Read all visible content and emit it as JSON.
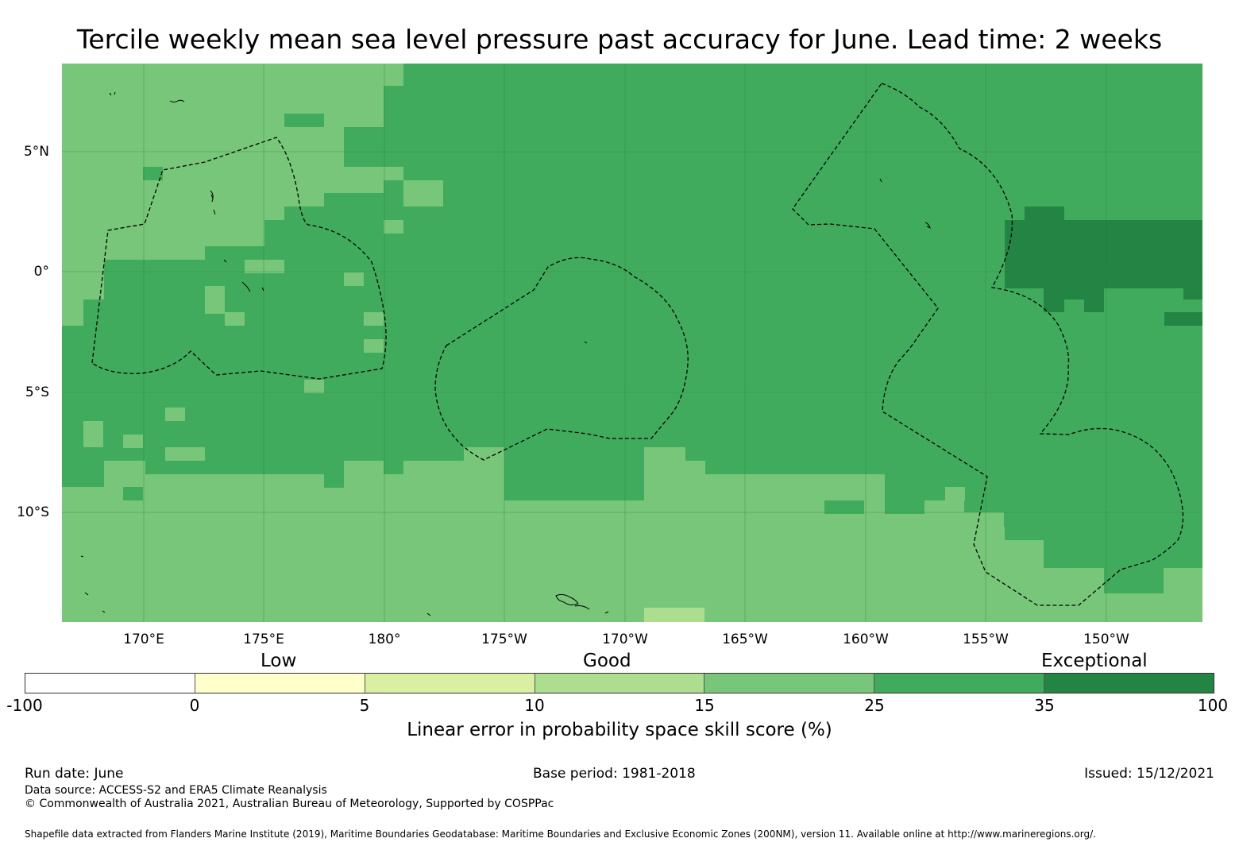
{
  "title": "Tercile weekly mean sea level pressure past accuracy for June. Lead time: 2 weeks",
  "map": {
    "lat_labels": [
      "5°N",
      "0°",
      "5°S",
      "10°S"
    ],
    "lon_labels": [
      "170°E",
      "175°E",
      "180°",
      "175°W",
      "170°W",
      "165°W",
      "160°W",
      "155°W",
      "150°W"
    ],
    "dominant_color": "#41ab5d",
    "background_color": "#78c679"
  },
  "legend": {
    "categories": [
      "Low",
      "Good",
      "Exceptional"
    ],
    "ticks": [
      "-100",
      "0",
      "5",
      "10",
      "15",
      "25",
      "35",
      "100"
    ],
    "colors": [
      "#ffffff",
      "#ffffcc",
      "#d9f0a3",
      "#addd8e",
      "#78c679",
      "#41ab5d",
      "#238443"
    ],
    "title": "Linear error in probability space skill score (%)"
  },
  "footer": {
    "run_date": "Run date: June",
    "base_period": "Base period: 1981-2018",
    "issued": "Issued: 15/12/2021",
    "data_source": "Data source: ACCESS-S2 and ERA5 Climate Reanalysis",
    "copyright": "© Commonwealth of Australia 2021, Australian Bureau of Meteorology, Supported by COSPPac",
    "shapefile": "Shapefile data extracted from Flanders Marine Institute (2019), Maritime Boundaries Geodatabase: Maritime Boundaries and Exclusive Economic Zones (200NM), version 11. Available online at http://www.marineregions.org/."
  }
}
